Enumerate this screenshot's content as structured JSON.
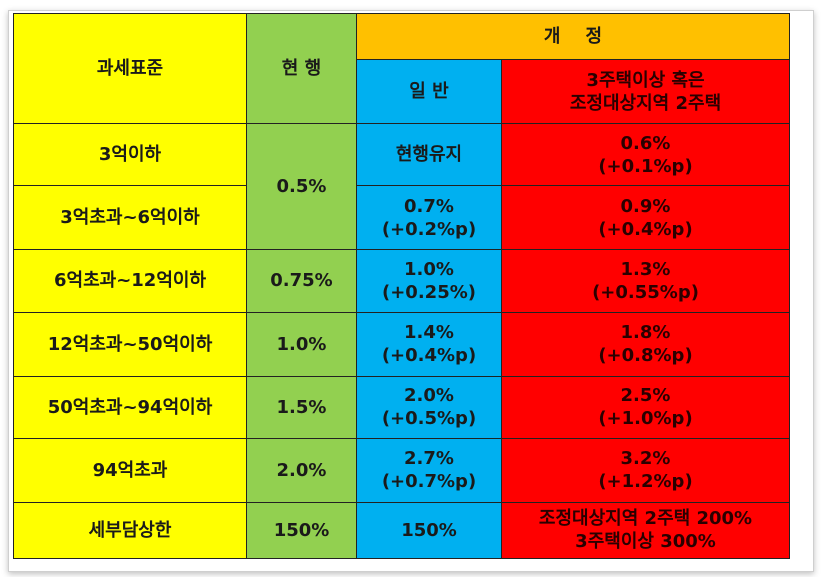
{
  "headers": {
    "standard": "과세표준",
    "current": "현 행",
    "revision": "개    정",
    "general": "일 반",
    "multi_line1": "3주택이상 혹은",
    "multi_line2": "조정대상지역 2주택"
  },
  "rows": [
    {
      "standard": "3억이하",
      "general": "현행유지",
      "multi_line1": "0.6%",
      "multi_line2": "(+0.1%p)"
    },
    {
      "standard": "3억초과~6억이하",
      "general_line1": "0.7%",
      "general_line2": "(+0.2%p)",
      "multi_line1": "0.9%",
      "multi_line2": "(+0.4%p)"
    },
    {
      "standard": "6억초과~12억이하",
      "current": "0.75%",
      "general_line1": "1.0%",
      "general_line2": "(+0.25%)",
      "multi_line1": "1.3%",
      "multi_line2": "(+0.55%p)"
    },
    {
      "standard": "12억초과~50억이하",
      "current": "1.0%",
      "general_line1": "1.4%",
      "general_line2": "(+0.4%p)",
      "multi_line1": "1.8%",
      "multi_line2": "(+0.8%p)"
    },
    {
      "standard": "50억초과~94억이하",
      "current": "1.5%",
      "general_line1": "2.0%",
      "general_line2": "(+0.5%p)",
      "multi_line1": "2.5%",
      "multi_line2": "(+1.0%p)"
    },
    {
      "standard": "94억초과",
      "current": "2.0%",
      "general_line1": "2.7%",
      "general_line2": "(+0.7%p)",
      "multi_line1": "3.2%",
      "multi_line2": "(+1.2%p)"
    },
    {
      "standard": "세부담상한",
      "current": "150%",
      "general": "150%",
      "multi_line1": "조정대상지역 2주택 200%",
      "multi_line2": "3주택이상 300%"
    }
  ],
  "merged_current_rows_1_2": "0.5%",
  "colors": {
    "standard_column": "#ffff00",
    "current_column": "#92d050",
    "revision_header": "#ffc000",
    "general_column": "#00b0f0",
    "multi_house_column": "#ff0000"
  }
}
